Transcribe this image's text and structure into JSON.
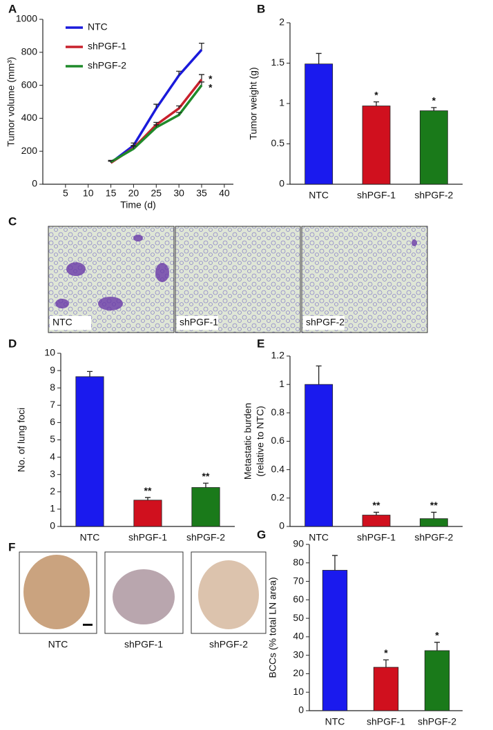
{
  "chart_data": [
    {
      "type": "line",
      "panel": "A",
      "x_label": "Time (d)",
      "y_label": "Tumor volume (mm³)",
      "x": [
        15,
        20,
        25,
        30,
        35
      ],
      "xlim": [
        0,
        42
      ],
      "xticks": [
        5,
        10,
        15,
        20,
        25,
        30,
        35,
        40
      ],
      "ylim": [
        0,
        1000
      ],
      "yticks": [
        0,
        200,
        400,
        600,
        800,
        1000
      ],
      "legend": "upper left",
      "series": [
        {
          "name": "NTC",
          "color": "#1a1adb",
          "values": [
            130,
            235,
            460,
            660,
            815
          ],
          "errors": [
            10,
            15,
            25,
            25,
            40
          ],
          "significance": [
            null,
            null,
            null,
            null,
            null
          ]
        },
        {
          "name": "shPGF-1",
          "color": "#c8202c",
          "values": [
            130,
            220,
            360,
            460,
            635
          ],
          "errors": [
            10,
            15,
            15,
            15,
            30
          ],
          "significance": [
            null,
            null,
            null,
            null,
            "*"
          ]
        },
        {
          "name": "shPGF-2",
          "color": "#1f8a2a",
          "values": [
            135,
            215,
            345,
            420,
            600
          ],
          "errors": [
            10,
            15,
            15,
            15,
            20
          ],
          "significance": [
            null,
            null,
            null,
            null,
            "*"
          ]
        }
      ]
    },
    {
      "type": "bar",
      "panel": "B",
      "y_label": "Tumor weight (g)",
      "categories": [
        "NTC",
        "shPGF-1",
        "shPGF-2"
      ],
      "values": [
        1.49,
        0.97,
        0.91
      ],
      "errors": [
        0.13,
        0.05,
        0.04
      ],
      "significance": [
        null,
        "*",
        "*"
      ],
      "colors": [
        "#1a1aee",
        "#d0101e",
        "#1a7a1a"
      ],
      "ylim": [
        0,
        2
      ],
      "yticks": [
        0,
        0.5,
        1,
        1.5,
        2
      ]
    },
    {
      "type": "bar",
      "panel": "D",
      "y_label": "No. of lung foci",
      "categories": [
        "NTC",
        "shPGF-1",
        "shPGF-2"
      ],
      "values": [
        8.65,
        1.52,
        2.25
      ],
      "errors": [
        0.3,
        0.15,
        0.25
      ],
      "significance": [
        null,
        "**",
        "**"
      ],
      "colors": [
        "#1a1aee",
        "#d0101e",
        "#1a7a1a"
      ],
      "ylim": [
        0,
        10
      ],
      "yticks": [
        0,
        1,
        2,
        3,
        4,
        5,
        6,
        7,
        8,
        9,
        10
      ]
    },
    {
      "type": "bar",
      "panel": "E",
      "y_label": [
        "Metastatic burden",
        "(relative to NTC)"
      ],
      "categories": [
        "NTC",
        "shPGF-1",
        "shPGF-2"
      ],
      "values": [
        1,
        0.08,
        0.055
      ],
      "errors": [
        0.13,
        0.02,
        0.045
      ],
      "significance": [
        null,
        "**",
        "**"
      ],
      "colors": [
        "#1a1aee",
        "#d0101e",
        "#1a7a1a"
      ],
      "ylim": [
        0,
        1.2
      ],
      "yticks": [
        0,
        0.2,
        0.4,
        0.6,
        0.8,
        1,
        1.2
      ]
    },
    {
      "type": "bar",
      "panel": "G",
      "y_label": "BCCs (% total LN area)",
      "categories": [
        "NTC",
        "shPGF-1",
        "shPGF-2"
      ],
      "values": [
        76,
        23.5,
        32.5
      ],
      "errors": [
        8,
        4,
        4.5
      ],
      "significance": [
        null,
        "*",
        "*"
      ],
      "colors": [
        "#1a1aee",
        "#d0101e",
        "#1a7a1a"
      ],
      "ylim": [
        0,
        90
      ],
      "yticks": [
        0,
        10,
        20,
        30,
        40,
        50,
        60,
        70,
        80,
        90
      ]
    }
  ],
  "images": [
    {
      "panel": "C",
      "labels": [
        "NTC",
        "shPGF-1",
        "shPGF-2"
      ]
    },
    {
      "panel": "F",
      "labels": [
        "NTC",
        "shPGF-1",
        "shPGF-2"
      ]
    }
  ]
}
